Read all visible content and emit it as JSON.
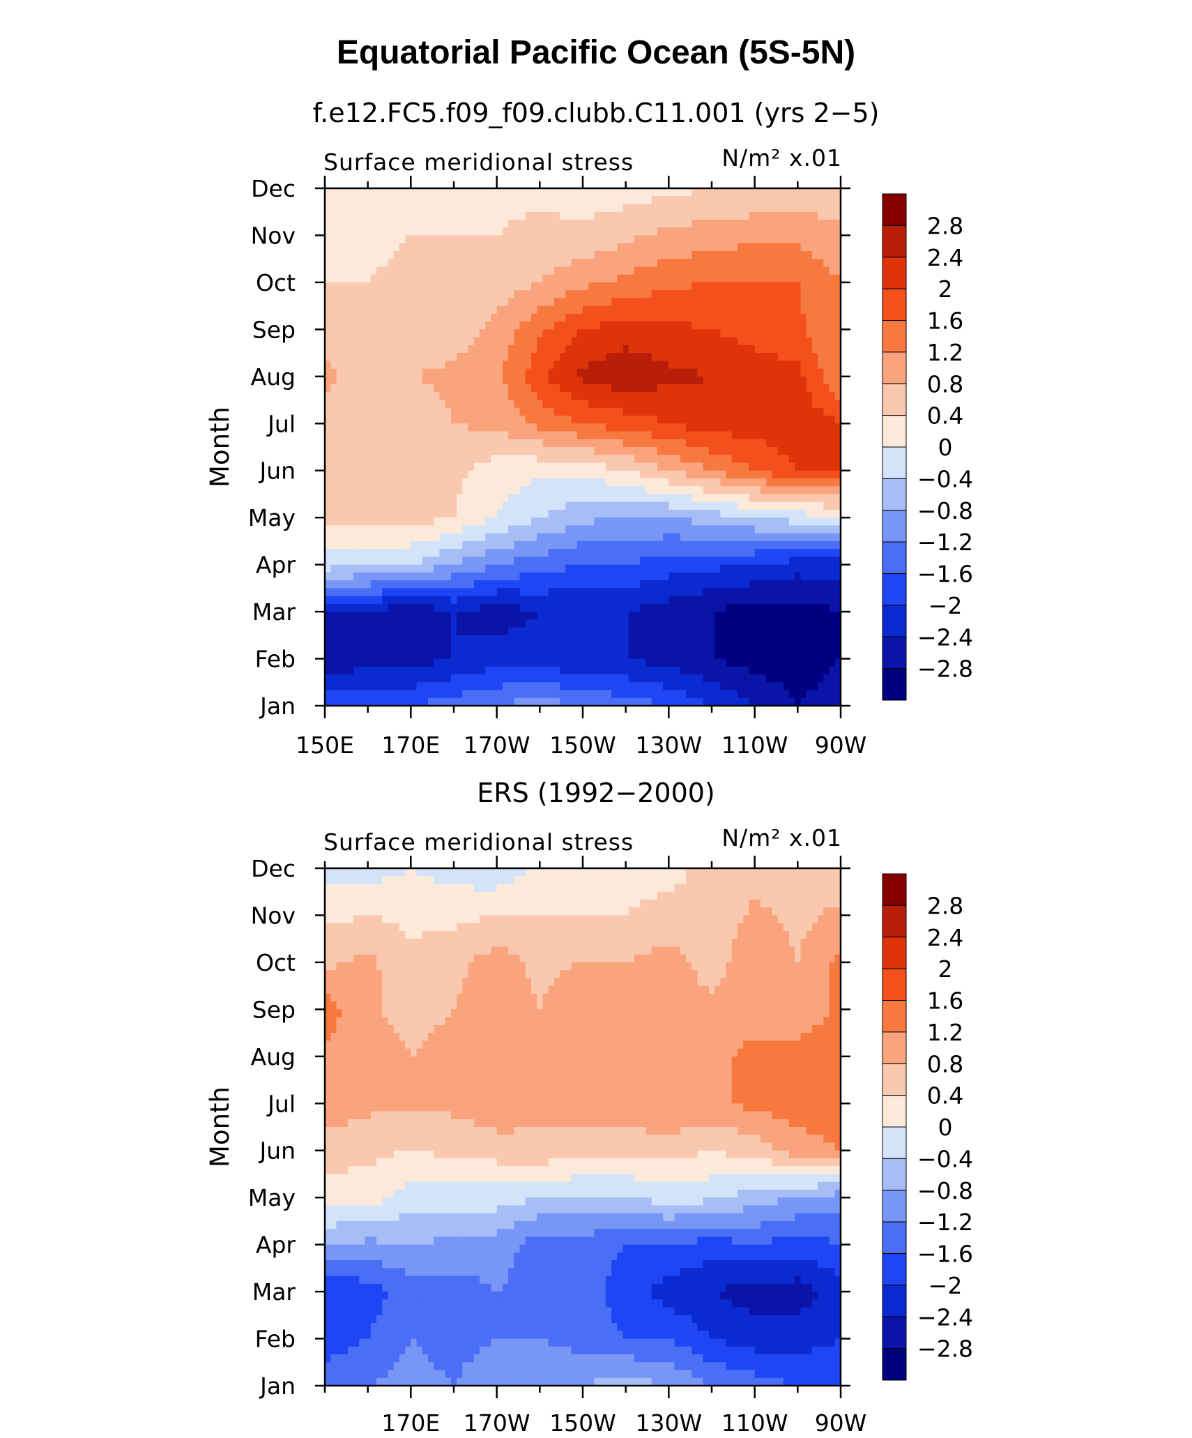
{
  "figure": {
    "title": "Equatorial Pacific Ocean (5S-5N)"
  },
  "colorbar": {
    "levels": [
      -2.8,
      -2.4,
      -2,
      -1.6,
      -1.2,
      -0.8,
      -0.4,
      0,
      0.4,
      0.8,
      1.2,
      1.6,
      2,
      2.4,
      2.8
    ],
    "labels": [
      "2.8",
      "2.4",
      "2",
      "1.6",
      "1.2",
      "0.8",
      "0.4",
      "0",
      "−0.4",
      "−0.8",
      "−1.2",
      "−1.6",
      "−2",
      "−2.4",
      "−2.8"
    ],
    "colors": [
      "#000080",
      "#0a14a8",
      "#0b2ad2",
      "#1e46f5",
      "#4a6ef5",
      "#7896f5",
      "#a7bdf5",
      "#d3e3fa",
      "#fde9da",
      "#fac8af",
      "#f9a47c",
      "#f7793f",
      "#f4501b",
      "#df340a",
      "#b91f08",
      "#870000"
    ]
  },
  "chart_data": [
    {
      "type": "heatmap",
      "panel_title": "f.e12.FC5.f09_f09.clubb.C11.001 (yrs 2−5)",
      "left_label": "Surface meridional stress",
      "right_label": "N/m² x.01",
      "xlabel": "",
      "ylabel": "Month",
      "x_ticks": [
        "150E",
        "170E",
        "170W",
        "150W",
        "130W",
        "110W",
        "90W"
      ],
      "x_tick_lon": [
        150,
        170,
        190,
        210,
        230,
        250,
        270
      ],
      "xlim": [
        150,
        270
      ],
      "y_ticks": [
        "Jan",
        "Feb",
        "Mar",
        "Apr",
        "May",
        "Jun",
        "Jul",
        "Aug",
        "Sep",
        "Oct",
        "Nov",
        "Dec"
      ],
      "ylim": [
        1,
        12
      ],
      "x": [
        150,
        160,
        170,
        180,
        190,
        200,
        210,
        220,
        230,
        240,
        250,
        260,
        270
      ],
      "y": [
        1,
        2,
        3,
        4,
        5,
        6,
        7,
        8,
        9,
        10,
        11,
        12
      ],
      "z": [
        [
          -1.6,
          -1.6,
          -1.6,
          -1.4,
          -1.2,
          -1.0,
          -1.2,
          -1.4,
          -1.6,
          -2.0,
          -2.4,
          -2.8,
          -2.6
        ],
        [
          -2.8,
          -2.6,
          -2.6,
          -2.4,
          -2.2,
          -2.2,
          -2.4,
          -2.4,
          -2.6,
          -2.8,
          -3.0,
          -3.0,
          -2.8
        ],
        [
          -2.4,
          -2.4,
          -2.8,
          -2.4,
          -2.6,
          -2.4,
          -2.4,
          -2.4,
          -2.6,
          -2.8,
          -3.0,
          -3.0,
          -2.8
        ],
        [
          -0.2,
          -0.3,
          -0.4,
          -0.8,
          -1.2,
          -1.4,
          -1.6,
          -1.6,
          -1.8,
          -1.9,
          -2.0,
          -2.2,
          -2.2
        ],
        [
          0.6,
          0.6,
          0.6,
          0.4,
          0.0,
          -0.4,
          -0.7,
          -0.8,
          -0.8,
          -0.6,
          -0.4,
          -0.2,
          -0.1
        ],
        [
          0.5,
          0.5,
          0.5,
          0.5,
          0.2,
          0.1,
          0.1,
          0.4,
          0.8,
          1.2,
          1.6,
          2.0,
          2.0
        ],
        [
          0.6,
          0.6,
          0.5,
          0.8,
          0.9,
          1.3,
          1.6,
          1.8,
          2.0,
          2.2,
          2.2,
          2.3,
          2.0
        ],
        [
          0.9,
          0.6,
          0.8,
          0.9,
          1.1,
          1.9,
          2.5,
          2.7,
          2.5,
          2.4,
          2.3,
          2.1,
          1.2
        ],
        [
          0.7,
          0.5,
          0.5,
          0.6,
          0.9,
          1.5,
          2.0,
          2.2,
          2.1,
          2.0,
          1.8,
          1.7,
          1.2
        ],
        [
          0.4,
          0.4,
          0.5,
          0.5,
          0.6,
          0.8,
          1.1,
          1.3,
          1.5,
          1.6,
          1.6,
          1.6,
          1.2
        ],
        [
          0.3,
          0.3,
          0.4,
          0.4,
          0.4,
          0.5,
          0.5,
          0.7,
          0.9,
          1.0,
          1.1,
          1.1,
          0.9
        ],
        [
          0.3,
          0.3,
          0.4,
          0.3,
          0.3,
          0.3,
          0.2,
          0.2,
          0.3,
          0.4,
          0.4,
          0.5,
          0.5
        ]
      ]
    },
    {
      "type": "heatmap",
      "panel_title": "ERS (1992−2000)",
      "left_label": "Surface meridional stress",
      "right_label": "N/m² x.01",
      "xlabel": "",
      "ylabel": "Month",
      "x_ticks": [
        "170E",
        "170W",
        "150W",
        "130W",
        "110W",
        "90W"
      ],
      "x_tick_lon": [
        170,
        190,
        210,
        230,
        250,
        270
      ],
      "xlim": [
        150,
        270
      ],
      "y_ticks": [
        "Jan",
        "Feb",
        "Mar",
        "Apr",
        "May",
        "Jun",
        "Jul",
        "Aug",
        "Sep",
        "Oct",
        "Nov",
        "Dec"
      ],
      "ylim": [
        1,
        12
      ],
      "x": [
        150,
        160,
        170,
        180,
        190,
        200,
        210,
        220,
        230,
        240,
        250,
        260,
        270
      ],
      "y": [
        1,
        2,
        3,
        4,
        5,
        6,
        7,
        8,
        9,
        10,
        11,
        12
      ],
      "z": [
        [
          -1.4,
          -1.2,
          -1.0,
          -1.2,
          -0.8,
          -0.8,
          -0.8,
          -0.6,
          -0.8,
          -1.2,
          -1.4,
          -1.6,
          -1.6
        ],
        [
          -1.8,
          -1.6,
          -1.2,
          -1.4,
          -1.2,
          -1.2,
          -1.4,
          -1.6,
          -1.6,
          -2.0,
          -2.2,
          -2.2,
          -2.0
        ],
        [
          -2.0,
          -1.8,
          -1.4,
          -1.4,
          -1.2,
          -1.4,
          -1.4,
          -1.8,
          -2.2,
          -2.4,
          -2.6,
          -2.6,
          -2.2
        ],
        [
          -0.8,
          -0.9,
          -0.8,
          -0.9,
          -1.0,
          -1.4,
          -1.4,
          -1.6,
          -1.6,
          -1.8,
          -1.6,
          -1.8,
          -1.6
        ],
        [
          0.2,
          0.2,
          -0.2,
          -0.2,
          -0.2,
          -0.4,
          -0.4,
          -0.4,
          -0.2,
          -0.3,
          -0.6,
          -0.8,
          -1.0
        ],
        [
          0.6,
          0.5,
          0.4,
          0.5,
          0.6,
          0.7,
          0.5,
          0.5,
          0.6,
          0.4,
          0.6,
          1.0,
          1.2
        ],
        [
          1.1,
          0.9,
          0.9,
          0.9,
          1.1,
          0.9,
          1.1,
          1.1,
          1.2,
          1.1,
          1.3,
          1.4,
          1.5
        ],
        [
          1.1,
          1.1,
          0.8,
          1.0,
          1.1,
          1.0,
          1.0,
          1.1,
          1.1,
          1.0,
          1.4,
          1.4,
          1.4
        ],
        [
          1.4,
          0.9,
          0.6,
          0.8,
          1.0,
          0.8,
          1.1,
          1.0,
          1.0,
          0.9,
          0.9,
          0.9,
          1.3
        ],
        [
          0.7,
          0.9,
          0.5,
          0.7,
          1.0,
          0.7,
          0.8,
          0.8,
          1.0,
          0.6,
          1.1,
          0.8,
          1.3
        ],
        [
          0.3,
          0.4,
          0.3,
          0.3,
          0.4,
          0.4,
          0.4,
          0.4,
          0.5,
          0.5,
          0.9,
          0.7,
          0.9
        ],
        [
          -0.2,
          -0.2,
          0.0,
          -0.2,
          -0.3,
          0.1,
          0.2,
          0.3,
          0.3,
          0.5,
          0.6,
          0.5,
          0.4
        ]
      ]
    }
  ]
}
